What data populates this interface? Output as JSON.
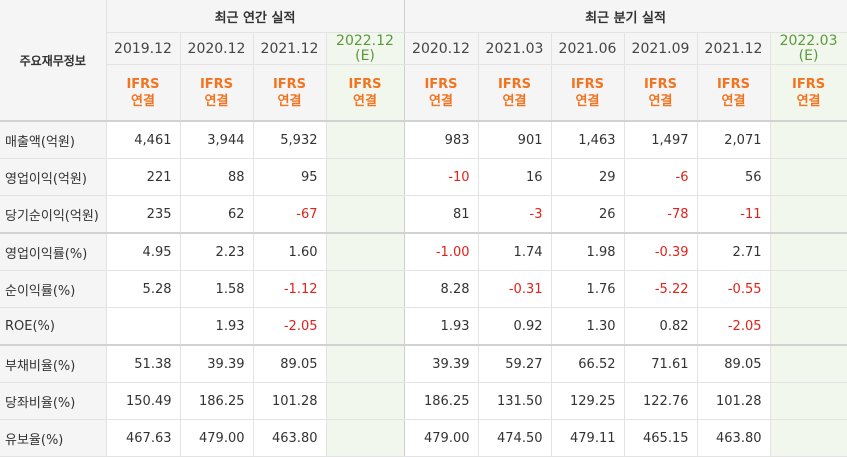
{
  "header": {
    "corner_label": "주요재무정보",
    "annual_group": "최근 연간 실적",
    "quarter_group": "최근 분기 실적",
    "periods": [
      "2019.12",
      "2020.12",
      "2021.12",
      "2022.12",
      "2020.12",
      "2021.03",
      "2021.06",
      "2021.09",
      "2021.12",
      "2022.03"
    ],
    "estimate_mark": "(E)",
    "ifrs_top": "IFRS",
    "ifrs_bottom": "연결"
  },
  "rows": [
    {
      "label": "매출액(억원)",
      "values": [
        "4,461",
        "3,944",
        "5,932",
        "",
        "983",
        "901",
        "1,463",
        "1,497",
        "2,071",
        ""
      ]
    },
    {
      "label": "영업이익(억원)",
      "values": [
        "221",
        "88",
        "95",
        "",
        "-10",
        "16",
        "29",
        "-6",
        "56",
        ""
      ]
    },
    {
      "label": "당기순이익(억원)",
      "values": [
        "235",
        "62",
        "-67",
        "",
        "81",
        "-3",
        "26",
        "-78",
        "-11",
        ""
      ]
    },
    {
      "label": "영업이익률(%)",
      "values": [
        "4.95",
        "2.23",
        "1.60",
        "",
        "-1.00",
        "1.74",
        "1.98",
        "-0.39",
        "2.71",
        ""
      ]
    },
    {
      "label": "순이익률(%)",
      "values": [
        "5.28",
        "1.58",
        "-1.12",
        "",
        "8.28",
        "-0.31",
        "1.76",
        "-5.22",
        "-0.55",
        ""
      ]
    },
    {
      "label": "ROE(%)",
      "values": [
        "",
        "1.93",
        "-2.05",
        "",
        "1.93",
        "0.92",
        "1.30",
        "0.82",
        "-2.05",
        ""
      ]
    },
    {
      "label": "부채비율(%)",
      "values": [
        "51.38",
        "39.39",
        "89.05",
        "",
        "39.39",
        "59.27",
        "66.52",
        "71.61",
        "89.05",
        ""
      ]
    },
    {
      "label": "당좌비율(%)",
      "values": [
        "150.49",
        "186.25",
        "101.28",
        "",
        "186.25",
        "131.50",
        "129.25",
        "122.76",
        "101.28",
        ""
      ]
    },
    {
      "label": "유보율(%)",
      "values": [
        "467.63",
        "479.00",
        "463.80",
        "",
        "479.00",
        "474.50",
        "479.11",
        "465.15",
        "463.80",
        ""
      ]
    }
  ],
  "colors": {
    "negative": "#e0221a",
    "ifrs": "#f27421",
    "estimate_bg": "#f2f7ee"
  }
}
